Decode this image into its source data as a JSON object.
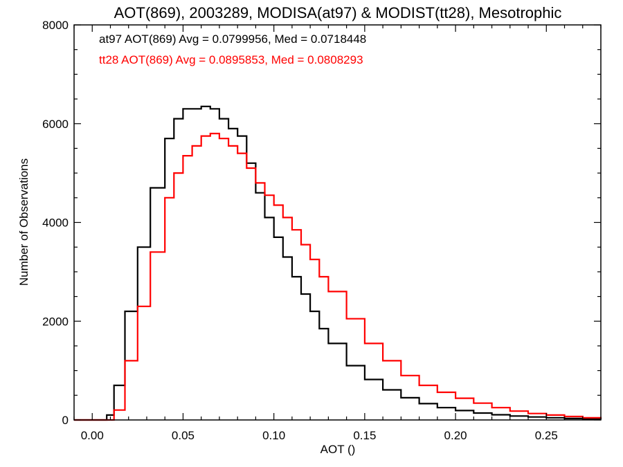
{
  "chart_data": {
    "type": "line",
    "step": true,
    "title": "AOT(869), 2003289, MODISA(at97) & MODIST(tt28), Mesotrophic",
    "xlabel": "AOT ()",
    "ylabel": "Number of Observations",
    "xlim": [
      -0.01,
      0.28
    ],
    "ylim": [
      0,
      8000
    ],
    "xticks": [
      "0.00",
      "0.05",
      "0.10",
      "0.15",
      "0.20",
      "0.25"
    ],
    "yticks": [
      "0",
      "2000",
      "4000",
      "6000",
      "8000"
    ],
    "grid": false,
    "legend_position": "top-left",
    "series": [
      {
        "name": "at97 AOT(869) Avg = 0.0799956, Med = 0.0718448",
        "color": "#000000",
        "x": [
          -0.01,
          0.005,
          0.008,
          0.012,
          0.018,
          0.025,
          0.032,
          0.04,
          0.045,
          0.05,
          0.055,
          0.06,
          0.065,
          0.07,
          0.075,
          0.08,
          0.085,
          0.09,
          0.095,
          0.1,
          0.105,
          0.11,
          0.115,
          0.12,
          0.125,
          0.13,
          0.14,
          0.15,
          0.16,
          0.17,
          0.18,
          0.19,
          0.2,
          0.21,
          0.22,
          0.23,
          0.24,
          0.25,
          0.26,
          0.27,
          0.28
        ],
        "y": [
          0,
          0,
          100,
          700,
          2200,
          3500,
          4700,
          5700,
          6100,
          6300,
          6300,
          6350,
          6300,
          6100,
          5900,
          5750,
          5200,
          4600,
          4100,
          3700,
          3300,
          2900,
          2550,
          2200,
          1850,
          1550,
          1100,
          820,
          610,
          450,
          330,
          250,
          190,
          140,
          105,
          80,
          60,
          45,
          30,
          20,
          12
        ]
      },
      {
        "name": "tt28 AOT(869) Avg = 0.0895853, Med = 0.0808293",
        "color": "#ff0000",
        "x": [
          -0.01,
          0.008,
          0.012,
          0.018,
          0.025,
          0.032,
          0.04,
          0.045,
          0.05,
          0.055,
          0.06,
          0.065,
          0.07,
          0.075,
          0.08,
          0.085,
          0.09,
          0.095,
          0.1,
          0.105,
          0.11,
          0.115,
          0.12,
          0.125,
          0.13,
          0.14,
          0.15,
          0.16,
          0.17,
          0.18,
          0.19,
          0.2,
          0.21,
          0.22,
          0.23,
          0.24,
          0.25,
          0.26,
          0.27,
          0.28
        ],
        "y": [
          0,
          0,
          200,
          1200,
          2300,
          3400,
          4500,
          5000,
          5350,
          5550,
          5750,
          5800,
          5700,
          5550,
          5400,
          5100,
          4800,
          4550,
          4350,
          4100,
          3850,
          3550,
          3250,
          2900,
          2600,
          2050,
          1550,
          1200,
          900,
          700,
          560,
          440,
          340,
          250,
          180,
          130,
          100,
          70,
          45,
          30
        ]
      }
    ]
  }
}
